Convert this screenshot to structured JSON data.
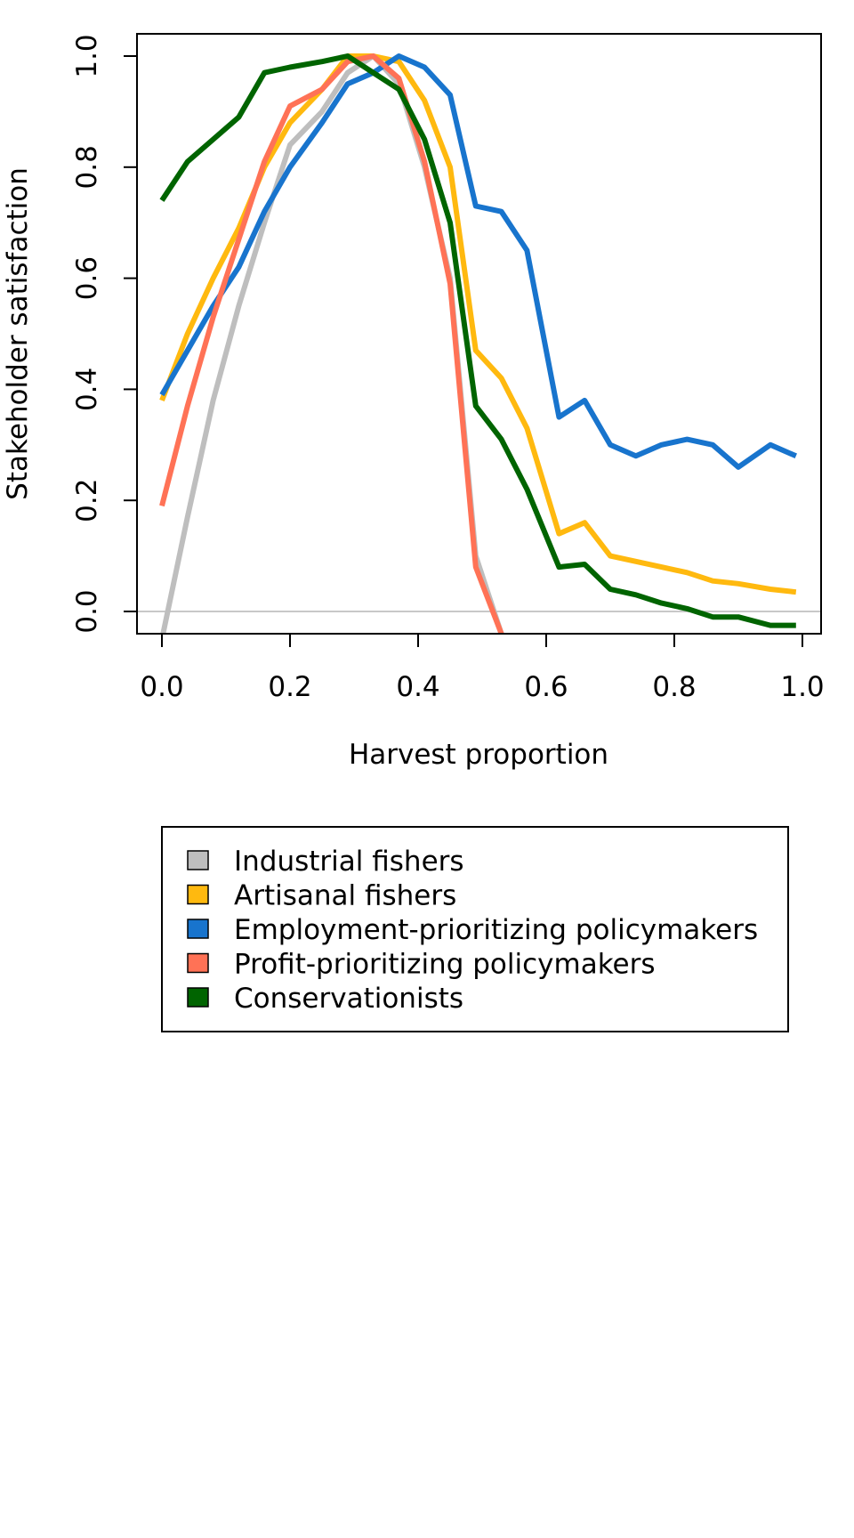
{
  "chart_data": {
    "type": "line",
    "title": "",
    "xlabel": "Harvest proportion",
    "ylabel": "Stakeholder satisfaction",
    "xlim": [
      -0.04,
      1.03
    ],
    "ylim": [
      -0.04,
      1.04
    ],
    "x_ticks": [
      "0.0",
      "0.2",
      "0.4",
      "0.6",
      "0.8",
      "1.0"
    ],
    "y_ticks": [
      "0.0",
      "0.2",
      "0.4",
      "0.6",
      "0.8",
      "1.0"
    ],
    "reference_line_y": 0,
    "reference_line_color": "#c8c8c8",
    "grid": false,
    "legend_position": "bottom",
    "x": [
      0.0,
      0.04,
      0.08,
      0.12,
      0.16,
      0.2,
      0.25,
      0.29,
      0.33,
      0.37,
      0.41,
      0.45,
      0.49,
      0.53,
      0.57,
      0.62,
      0.66,
      0.7,
      0.74,
      0.78,
      0.82,
      0.86,
      0.9,
      0.95,
      0.99
    ],
    "series": [
      {
        "name": "Industrial fishers",
        "color": "#bebebe",
        "values": [
          -0.05,
          0.17,
          0.38,
          0.55,
          0.7,
          0.84,
          0.9,
          0.97,
          1.0,
          0.95,
          0.8,
          0.6,
          0.1,
          -0.04,
          null,
          null,
          null,
          null,
          null,
          null,
          null,
          null,
          null,
          null,
          null
        ]
      },
      {
        "name": "Artisanal fishers",
        "color": "#ffb90f",
        "values": [
          0.38,
          0.5,
          0.6,
          0.69,
          0.8,
          0.88,
          0.94,
          1.0,
          1.0,
          0.99,
          0.92,
          0.8,
          0.47,
          0.42,
          0.33,
          0.14,
          0.16,
          0.1,
          0.09,
          0.08,
          0.07,
          0.055,
          0.05,
          0.04,
          0.035
        ]
      },
      {
        "name": "Employment-prioritizing policymakers",
        "color": "#1874cd",
        "values": [
          0.39,
          0.47,
          0.55,
          0.62,
          0.72,
          0.8,
          0.88,
          0.95,
          0.97,
          1.0,
          0.98,
          0.93,
          0.73,
          0.72,
          0.65,
          0.35,
          0.38,
          0.3,
          0.28,
          0.3,
          0.31,
          0.3,
          0.26,
          0.3,
          0.28
        ]
      },
      {
        "name": "Profit-prioritizing policymakers",
        "color": "#ff7256",
        "values": [
          0.19,
          0.37,
          0.53,
          0.67,
          0.81,
          0.91,
          0.94,
          0.99,
          1.0,
          0.96,
          0.81,
          0.59,
          0.08,
          -0.04,
          null,
          null,
          null,
          null,
          null,
          null,
          null,
          null,
          null,
          null,
          null
        ]
      },
      {
        "name": "Conservationists",
        "color": "#006400",
        "values": [
          0.74,
          0.81,
          0.85,
          0.89,
          0.97,
          0.98,
          0.99,
          1.0,
          0.97,
          0.94,
          0.85,
          0.7,
          0.37,
          0.31,
          0.22,
          0.08,
          0.085,
          0.04,
          0.03,
          0.015,
          0.005,
          -0.01,
          -0.01,
          -0.025,
          -0.025
        ]
      }
    ]
  }
}
